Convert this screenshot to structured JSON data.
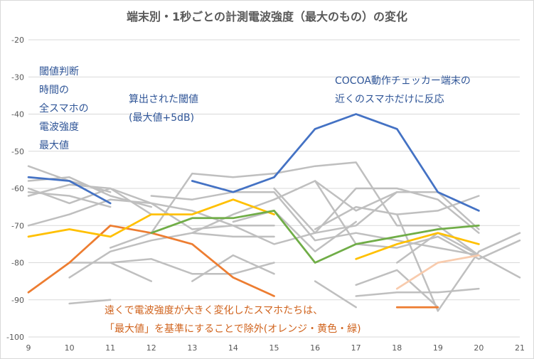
{
  "chart_data": {
    "type": "line",
    "title": "端末別・1秒ごとの計測電波強度（最大のもの）の変化",
    "xlabel": "",
    "ylabel": "",
    "xlim": [
      9,
      21
    ],
    "ylim": [
      -100,
      -20
    ],
    "x_ticks": [
      "9",
      "10",
      "11",
      "12",
      "13",
      "14",
      "15",
      "16",
      "17",
      "18",
      "19",
      "20",
      "21"
    ],
    "y_ticks": [
      "-20",
      "-30",
      "-40",
      "-50",
      "-60",
      "-70",
      "-80",
      "-90",
      "-100"
    ],
    "grid": true,
    "colors": {
      "gray": "#bfbfbf",
      "blue": "#4472c4",
      "orange": "#ed7d31",
      "yellow": "#ffc000",
      "green": "#70ad47",
      "peach": "#f8cbad",
      "grid": "#d9d9d9",
      "axis_text": "#595959"
    },
    "series": [
      {
        "color": "gray",
        "points": [
          [
            9,
            -54
          ],
          [
            10,
            -58
          ],
          [
            11,
            -61
          ]
        ]
      },
      {
        "color": "gray",
        "points": [
          [
            9,
            -58
          ],
          [
            10,
            -57
          ],
          [
            11,
            -62
          ],
          [
            12,
            -65
          ]
        ]
      },
      {
        "color": "gray",
        "points": [
          [
            9,
            -60
          ],
          [
            10,
            -64
          ],
          [
            11,
            -60
          ],
          [
            12,
            -64
          ],
          [
            13,
            -66
          ],
          [
            14,
            -70
          ],
          [
            15,
            -70
          ]
        ]
      },
      {
        "color": "gray",
        "points": [
          [
            9,
            -61
          ],
          [
            10,
            -62
          ],
          [
            11,
            -65
          ]
        ]
      },
      {
        "color": "gray",
        "points": [
          [
            9,
            -62
          ],
          [
            10,
            -59
          ],
          [
            11,
            -60
          ],
          [
            12,
            -67
          ]
        ]
      },
      {
        "color": "gray",
        "points": [
          [
            9,
            -70
          ],
          [
            10,
            -67
          ],
          [
            11,
            -63
          ],
          [
            12,
            -64
          ],
          [
            13,
            -71
          ],
          [
            14,
            -70
          ],
          [
            15,
            -75
          ],
          [
            16,
            -72
          ],
          [
            17,
            -70
          ],
          [
            18,
            -61
          ],
          [
            19,
            -61
          ],
          [
            20,
            -71
          ]
        ]
      },
      {
        "color": "gray",
        "points": [
          [
            10,
            -84
          ],
          [
            11,
            -77
          ],
          [
            12,
            -74
          ],
          [
            13,
            -72
          ],
          [
            14,
            -67
          ],
          [
            15,
            -63
          ],
          [
            16,
            -58
          ],
          [
            17,
            -66
          ],
          [
            18,
            -61
          ]
        ]
      },
      {
        "color": "gray",
        "points": [
          [
            10,
            -91
          ],
          [
            11,
            -90
          ]
        ]
      },
      {
        "color": "gray",
        "points": [
          [
            10,
            -80
          ],
          [
            11,
            -80
          ],
          [
            12,
            -79
          ],
          [
            13,
            -83
          ],
          [
            14,
            -83
          ],
          [
            15,
            -80
          ]
        ]
      },
      {
        "color": "gray",
        "points": [
          [
            11,
            -80
          ],
          [
            12,
            -85
          ]
        ]
      },
      {
        "color": "gray",
        "points": [
          [
            11,
            -76
          ],
          [
            12,
            -72
          ],
          [
            13,
            -56
          ],
          [
            14,
            -57
          ],
          [
            15,
            -56
          ],
          [
            16,
            -54
          ],
          [
            17,
            -53
          ],
          [
            18,
            -70
          ],
          [
            19,
            -70
          ],
          [
            20,
            -78
          ]
        ]
      },
      {
        "color": "gray",
        "points": [
          [
            12,
            -62
          ],
          [
            13,
            -63
          ],
          [
            14,
            -61
          ],
          [
            15,
            -61
          ],
          [
            16,
            -74
          ],
          [
            17,
            -72
          ],
          [
            18,
            -74
          ],
          [
            19,
            -76
          ],
          [
            20,
            -78
          ]
        ]
      },
      {
        "color": "gray",
        "points": [
          [
            13,
            -85
          ],
          [
            14,
            -78
          ],
          [
            15,
            -83
          ]
        ]
      },
      {
        "color": "gray",
        "points": [
          [
            13,
            -72
          ],
          [
            14,
            -73
          ],
          [
            15,
            -73
          ]
        ]
      },
      {
        "color": "gray",
        "points": [
          [
            14,
            -69
          ],
          [
            15,
            -66
          ],
          [
            16,
            -77
          ],
          [
            17,
            -69
          ]
        ]
      },
      {
        "color": "gray",
        "points": [
          [
            15,
            -60
          ],
          [
            16,
            -72
          ],
          [
            17,
            -60
          ],
          [
            18,
            -60
          ],
          [
            19,
            -63
          ],
          [
            20,
            -72
          ]
        ]
      },
      {
        "color": "gray",
        "points": [
          [
            16,
            -85
          ],
          [
            17,
            -92
          ]
        ]
      },
      {
        "color": "gray",
        "points": [
          [
            16,
            -71
          ],
          [
            17,
            -65
          ],
          [
            18,
            -67
          ],
          [
            19,
            -66
          ],
          [
            20,
            -62
          ]
        ]
      },
      {
        "color": "gray",
        "points": [
          [
            17,
            -86
          ],
          [
            18,
            -82
          ],
          [
            19,
            -92
          ]
        ]
      },
      {
        "color": "gray",
        "points": [
          [
            17,
            -89
          ],
          [
            18,
            -88
          ],
          [
            19,
            -88
          ],
          [
            20,
            -87
          ]
        ]
      },
      {
        "color": "gray",
        "points": [
          [
            18,
            -67
          ],
          [
            19,
            -93
          ],
          [
            20,
            -77
          ],
          [
            21,
            -72
          ]
        ]
      },
      {
        "color": "gray",
        "points": [
          [
            18,
            -80
          ],
          [
            19,
            -72
          ],
          [
            20,
            -78
          ],
          [
            21,
            -84
          ]
        ]
      },
      {
        "color": "gray",
        "points": [
          [
            16,
            -58
          ],
          [
            17,
            -75
          ],
          [
            18,
            -76
          ],
          [
            19,
            -73
          ],
          [
            20,
            -79
          ]
        ]
      },
      {
        "color": "gray",
        "points": [
          [
            20,
            -79
          ],
          [
            21,
            -74
          ]
        ]
      },
      {
        "color": "blue",
        "points": [
          [
            9,
            -57
          ],
          [
            10,
            -58
          ],
          [
            11,
            -64
          ]
        ]
      },
      {
        "color": "blue",
        "points": [
          [
            13,
            -58
          ],
          [
            14,
            -61
          ],
          [
            15,
            -57
          ],
          [
            16,
            -44
          ],
          [
            17,
            -40
          ],
          [
            18,
            -44
          ],
          [
            19,
            -61
          ],
          [
            20,
            -66
          ]
        ]
      },
      {
        "color": "orange",
        "points": [
          [
            9,
            -88
          ],
          [
            10,
            -80
          ],
          [
            11,
            -70
          ],
          [
            12,
            -72
          ],
          [
            13,
            -75
          ],
          [
            14,
            -84
          ],
          [
            15,
            -89
          ]
        ]
      },
      {
        "color": "orange",
        "points": [
          [
            18,
            -92
          ],
          [
            19,
            -92
          ]
        ]
      },
      {
        "color": "yellow",
        "points": [
          [
            9,
            -73
          ],
          [
            10,
            -71
          ],
          [
            11,
            -73
          ],
          [
            12,
            -67
          ],
          [
            13,
            -67
          ],
          [
            14,
            -63
          ],
          [
            15,
            -67
          ]
        ]
      },
      {
        "color": "yellow",
        "points": [
          [
            17,
            -79
          ],
          [
            18,
            -75
          ],
          [
            19,
            -72
          ],
          [
            20,
            -75
          ]
        ]
      },
      {
        "color": "green",
        "points": [
          [
            12,
            -72
          ],
          [
            13,
            -68
          ],
          [
            14,
            -68
          ],
          [
            15,
            -66
          ],
          [
            16,
            -80
          ],
          [
            17,
            -75
          ],
          [
            18,
            -73
          ],
          [
            19,
            -71
          ],
          [
            20,
            -70
          ]
        ]
      },
      {
        "color": "peach",
        "points": [
          [
            18,
            -87
          ],
          [
            19,
            -80
          ],
          [
            20,
            -78
          ]
        ]
      }
    ],
    "annotations": {
      "threshold_basis": "閾値判断\n時間の\n全スマホの\n電波強度\n最大値",
      "computed_threshold": "算出された閾値\n(最大値+5dB)",
      "cocoa_note": "COCOA動作チェッカー端末の\n近くのスマホだけに反応",
      "exclusion_note": "遠くで電波強度が大きく変化したスマホたちは、\n「最大値」を基準にすることで除外(オレンジ・黄色・緑)"
    }
  }
}
